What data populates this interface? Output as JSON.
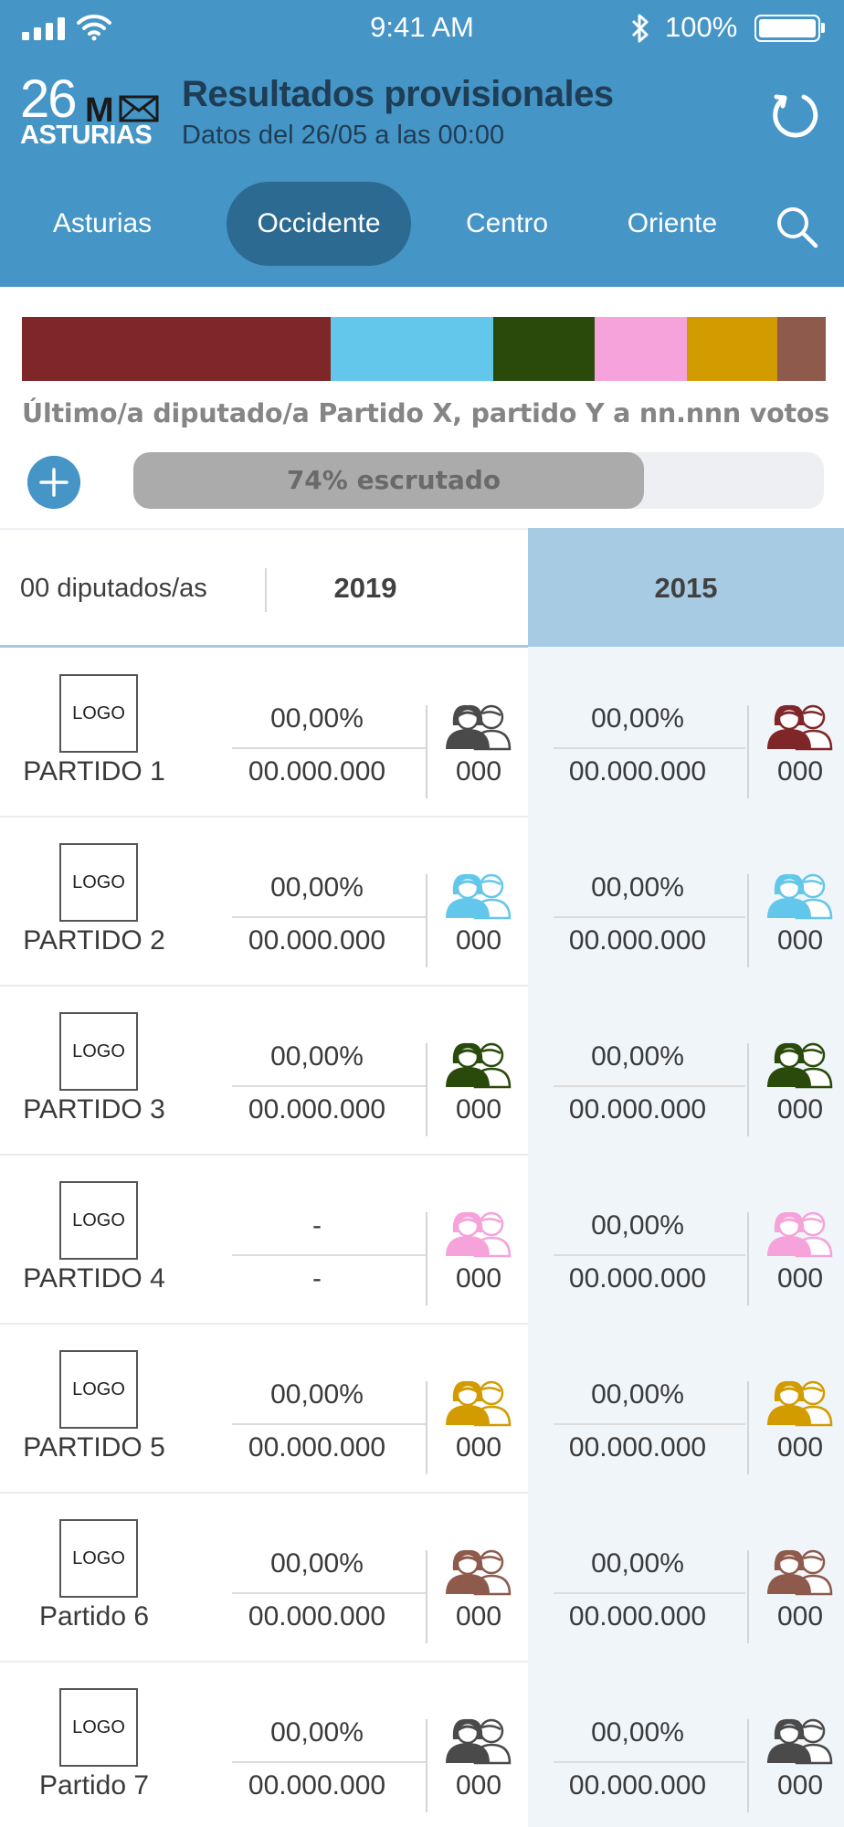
{
  "status_bar": {
    "time": "9:41 AM",
    "battery": "100%",
    "icons": [
      "signal-icon",
      "wifi-icon",
      "bluetooth-icon",
      "battery-icon"
    ]
  },
  "header": {
    "logo_number": "26",
    "logo_letter": "M",
    "logo_region": "ASTURIAS",
    "title": "Resultados provisionales",
    "subtitle": "Datos del 26/05 a las 00:00",
    "refresh_icon": "refresh-icon"
  },
  "tabs": [
    {
      "label": "Asturias",
      "active": false
    },
    {
      "label": "Occidente",
      "active": true
    },
    {
      "label": "Centro",
      "active": false
    },
    {
      "label": "Oriente",
      "active": false
    }
  ],
  "search_icon": "search-icon",
  "summary": {
    "seat_distribution": [
      {
        "color": "#7f2628",
        "share": 0.301
      },
      {
        "color": "#62c7ea",
        "share": 0.159
      },
      {
        "color": "#2a4a0b",
        "share": 0.099
      },
      {
        "color": "#f5a3da",
        "share": 0.09
      },
      {
        "color": "#d29b00",
        "share": 0.088
      },
      {
        "color": "#8d5a4b",
        "share": 0.047
      }
    ],
    "last_seat": "Último/a diputado/a Partido X, partido Y a nn.nnn votos",
    "add_icon": "plus-icon",
    "progress_pct": 74,
    "progress_label": "74% escrutado"
  },
  "table": {
    "seats_header": "00 diputados/as",
    "years": [
      "2019",
      "2015"
    ],
    "rows": [
      {
        "logo": "LOGO",
        "party": "PARTIDO 1",
        "color": "#7f2628",
        "y2019": {
          "pct": "00,00%",
          "votes": "00.000.000",
          "seats": "000",
          "icon_color": "#4a4a4a"
        },
        "y2015": {
          "pct": "00,00%",
          "votes": "00.000.000",
          "seats": "000",
          "icon_color": "#7f2628"
        }
      },
      {
        "logo": "LOGO",
        "party": "PARTIDO 2",
        "color": "#62c7ea",
        "y2019": {
          "pct": "00,00%",
          "votes": "00.000.000",
          "seats": "000",
          "icon_color": "#62c7ea"
        },
        "y2015": {
          "pct": "00,00%",
          "votes": "00.000.000",
          "seats": "000",
          "icon_color": "#62c7ea"
        }
      },
      {
        "logo": "LOGO",
        "party": "PARTIDO 3",
        "color": "#2a4a0b",
        "y2019": {
          "pct": "00,00%",
          "votes": "00.000.000",
          "seats": "000",
          "icon_color": "#2a4a0b"
        },
        "y2015": {
          "pct": "00,00%",
          "votes": "00.000.000",
          "seats": "000",
          "icon_color": "#2a4a0b"
        }
      },
      {
        "logo": "LOGO",
        "party": "PARTIDO 4",
        "color": "#f5a3da",
        "y2019": {
          "pct": "-",
          "votes": "-",
          "seats": "000",
          "icon_color": "#f5a3da"
        },
        "y2015": {
          "pct": "00,00%",
          "votes": "00.000.000",
          "seats": "000",
          "icon_color": "#f5a3da"
        }
      },
      {
        "logo": "LOGO",
        "party": "PARTIDO 5",
        "color": "#d29b00",
        "y2019": {
          "pct": "00,00%",
          "votes": "00.000.000",
          "seats": "000",
          "icon_color": "#d29b00"
        },
        "y2015": {
          "pct": "00,00%",
          "votes": "00.000.000",
          "seats": "000",
          "icon_color": "#d29b00"
        }
      },
      {
        "logo": "LOGO",
        "party": "Partido 6",
        "color": "#8d5a4b",
        "y2019": {
          "pct": "00,00%",
          "votes": "00.000.000",
          "seats": "000",
          "icon_color": "#8d5a4b"
        },
        "y2015": {
          "pct": "00,00%",
          "votes": "00.000.000",
          "seats": "000",
          "icon_color": "#8d5a4b"
        }
      },
      {
        "logo": "LOGO",
        "party": "Partido 7",
        "color": "#4a4a4a",
        "y2019": {
          "pct": "00,00%",
          "votes": "00.000.000",
          "seats": "000",
          "icon_color": "#4a4a4a"
        },
        "y2015": {
          "pct": "00,00%",
          "votes": "00.000.000",
          "seats": "000",
          "icon_color": "#4a4a4a"
        }
      }
    ]
  }
}
